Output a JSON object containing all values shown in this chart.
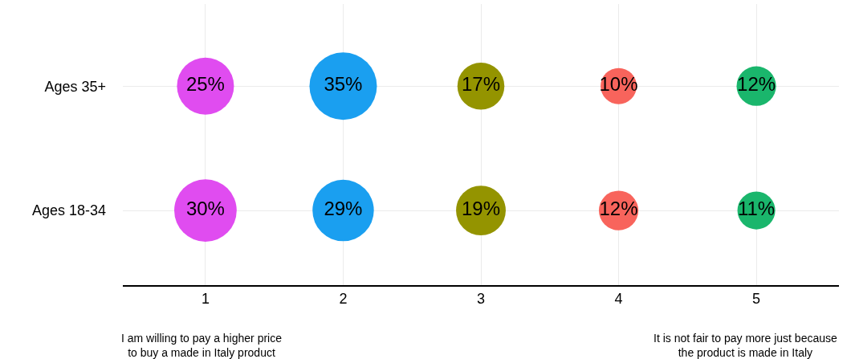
{
  "chart_data": {
    "type": "heatmap",
    "categories": [
      "1",
      "2",
      "3",
      "4",
      "5"
    ],
    "y_categories": [
      "Ages 35+",
      "Ages 18-34"
    ],
    "colors": [
      "#e04cf0",
      "#1a9ff0",
      "#949400",
      "#f8645c",
      "#1ab66c"
    ],
    "cells": [
      [
        25,
        35,
        17,
        10,
        12
      ],
      [
        30,
        29,
        19,
        12,
        11
      ]
    ],
    "cell_labels": [
      [
        "25%",
        "35%",
        "17%",
        "10%",
        "12%"
      ],
      [
        "30%",
        "29%",
        "19%",
        "12%",
        "11%"
      ]
    ],
    "grid": true,
    "annotations": [
      "I am willing to pay a higher price\nto buy a made in Italy product",
      "It is not fair to pay more just because\nthe product is made in Italy"
    ]
  }
}
